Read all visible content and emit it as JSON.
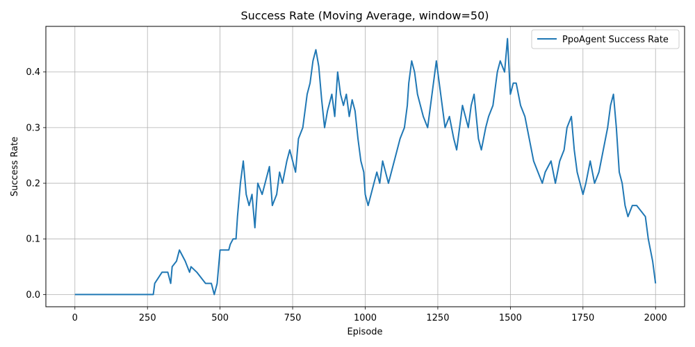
{
  "chart_data": {
    "type": "line",
    "title": "Success Rate (Moving Average, window=50)",
    "xlabel": "Episode",
    "ylabel": "Success Rate",
    "xlim": [
      -100,
      2100
    ],
    "ylim": [
      -0.022,
      0.482
    ],
    "xticks": [
      0,
      250,
      500,
      750,
      1000,
      1250,
      1500,
      1750,
      2000
    ],
    "xtick_labels": [
      "0",
      "250",
      "500",
      "750",
      "1000",
      "1250",
      "1500",
      "1750",
      "2000"
    ],
    "yticks": [
      0.0,
      0.1,
      0.2,
      0.3,
      0.4
    ],
    "ytick_labels": [
      "0.0",
      "0.1",
      "0.2",
      "0.3",
      "0.4"
    ],
    "grid": true,
    "legend_position": "top-right",
    "series": [
      {
        "name": "PpoAgent Success Rate",
        "color": "#1f77b4",
        "x": [
          0,
          270,
          275,
          300,
          320,
          330,
          335,
          350,
          360,
          380,
          395,
          400,
          420,
          450,
          470,
          480,
          490,
          500,
          530,
          535,
          545,
          555,
          560,
          570,
          580,
          590,
          600,
          610,
          620,
          630,
          645,
          660,
          670,
          680,
          695,
          705,
          715,
          730,
          740,
          750,
          760,
          770,
          785,
          795,
          800,
          810,
          820,
          830,
          840,
          850,
          860,
          870,
          885,
          895,
          905,
          915,
          925,
          935,
          945,
          955,
          965,
          975,
          985,
          995,
          1000,
          1010,
          1020,
          1030,
          1040,
          1050,
          1060,
          1070,
          1080,
          1090,
          1100,
          1110,
          1120,
          1135,
          1145,
          1150,
          1160,
          1170,
          1180,
          1190,
          1200,
          1215,
          1225,
          1235,
          1245,
          1260,
          1275,
          1290,
          1305,
          1315,
          1325,
          1335,
          1345,
          1355,
          1365,
          1375,
          1390,
          1400,
          1415,
          1425,
          1440,
          1455,
          1465,
          1480,
          1490,
          1500,
          1510,
          1520,
          1535,
          1550,
          1565,
          1580,
          1595,
          1610,
          1620,
          1640,
          1655,
          1670,
          1685,
          1695,
          1710,
          1720,
          1730,
          1740,
          1750,
          1760,
          1775,
          1790,
          1805,
          1820,
          1835,
          1845,
          1855,
          1865,
          1875,
          1885,
          1895,
          1905,
          1920,
          1935,
          1950,
          1965,
          1975,
          1990,
          2000
        ],
        "y": [
          0.0,
          0.0,
          0.02,
          0.04,
          0.04,
          0.02,
          0.05,
          0.06,
          0.08,
          0.06,
          0.04,
          0.05,
          0.04,
          0.02,
          0.02,
          0.0,
          0.02,
          0.08,
          0.08,
          0.09,
          0.1,
          0.1,
          0.14,
          0.2,
          0.24,
          0.18,
          0.16,
          0.18,
          0.12,
          0.2,
          0.18,
          0.21,
          0.23,
          0.16,
          0.18,
          0.22,
          0.2,
          0.24,
          0.26,
          0.24,
          0.22,
          0.28,
          0.3,
          0.34,
          0.36,
          0.38,
          0.42,
          0.44,
          0.41,
          0.35,
          0.3,
          0.33,
          0.36,
          0.32,
          0.4,
          0.36,
          0.34,
          0.36,
          0.32,
          0.35,
          0.33,
          0.28,
          0.24,
          0.22,
          0.18,
          0.16,
          0.18,
          0.2,
          0.22,
          0.2,
          0.24,
          0.22,
          0.2,
          0.22,
          0.24,
          0.26,
          0.28,
          0.3,
          0.34,
          0.38,
          0.42,
          0.4,
          0.36,
          0.34,
          0.32,
          0.3,
          0.34,
          0.38,
          0.42,
          0.36,
          0.3,
          0.32,
          0.28,
          0.26,
          0.3,
          0.34,
          0.32,
          0.3,
          0.34,
          0.36,
          0.28,
          0.26,
          0.3,
          0.32,
          0.34,
          0.4,
          0.42,
          0.4,
          0.46,
          0.36,
          0.38,
          0.38,
          0.34,
          0.32,
          0.28,
          0.24,
          0.22,
          0.2,
          0.22,
          0.24,
          0.2,
          0.24,
          0.26,
          0.3,
          0.32,
          0.26,
          0.22,
          0.2,
          0.18,
          0.2,
          0.24,
          0.2,
          0.22,
          0.26,
          0.3,
          0.34,
          0.36,
          0.3,
          0.22,
          0.2,
          0.16,
          0.14,
          0.16,
          0.16,
          0.15,
          0.14,
          0.1,
          0.06,
          0.02
        ]
      }
    ]
  }
}
